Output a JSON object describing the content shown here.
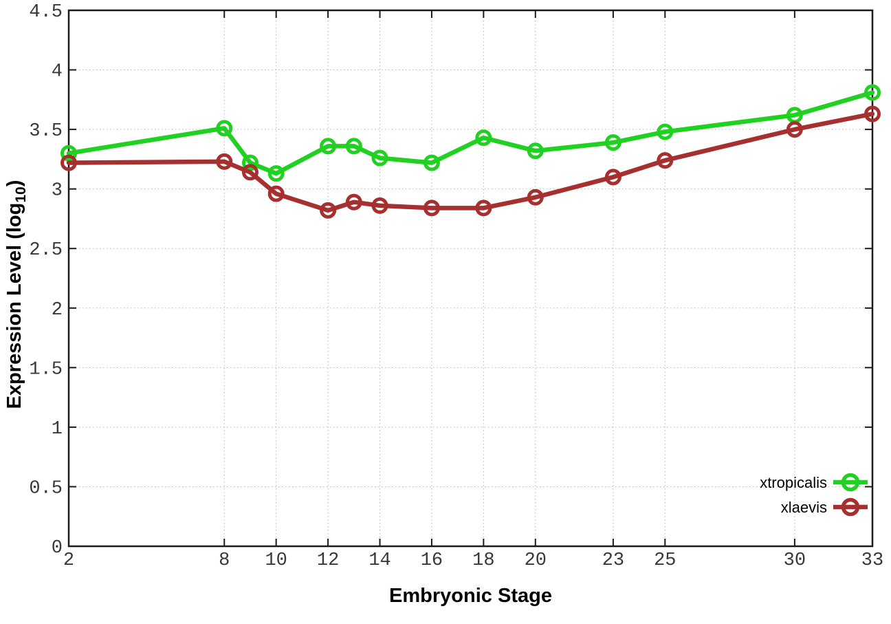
{
  "figure": {
    "background": "#ffffff",
    "xlabel": "Embryonic Stage",
    "ylabel_parts": [
      {
        "text": "Expression Level (log",
        "sub": false
      },
      {
        "text": "10",
        "sub": true
      },
      {
        "text": ")",
        "sub": false
      }
    ]
  },
  "chart_data": {
    "type": "line",
    "title": "",
    "xlabel": "Embryonic Stage",
    "ylabel": "Expression Level (log10)",
    "x": [
      2,
      8,
      9,
      10,
      12,
      13,
      14,
      16,
      18,
      20,
      23,
      25,
      30,
      33
    ],
    "series": [
      {
        "name": "xtropicalis",
        "color": "#21d121",
        "marker": "open-circle",
        "values": [
          3.3,
          3.51,
          3.22,
          3.13,
          3.36,
          3.36,
          3.26,
          3.22,
          3.43,
          3.32,
          3.39,
          3.48,
          3.62,
          3.81
        ]
      },
      {
        "name": "xlaevis",
        "color": "#a63030",
        "marker": "open-circle",
        "values": [
          3.22,
          3.23,
          3.14,
          2.96,
          2.82,
          2.89,
          2.86,
          2.84,
          2.84,
          2.93,
          3.1,
          3.24,
          3.5,
          3.63
        ]
      }
    ],
    "xlim": [
      2,
      33
    ],
    "ylim": [
      0,
      4.5
    ],
    "xticks": {
      "values": [
        2,
        8,
        10,
        12,
        14,
        16,
        18,
        20,
        23,
        25,
        30,
        33
      ],
      "labels": [
        "2",
        "8",
        "10",
        "12",
        "14",
        "16",
        "18",
        "20",
        "23",
        "25",
        "30",
        "33"
      ]
    },
    "yticks": {
      "values": [
        0,
        0.5,
        1,
        1.5,
        2,
        2.5,
        3,
        3.5,
        4,
        4.5
      ],
      "labels": [
        "0",
        "0.5",
        "1",
        "1.5",
        "2",
        "2.5",
        "3",
        "3.5",
        "4",
        "4.5"
      ]
    },
    "grid": true,
    "grid_style": "dotted",
    "legend_position": "bottom-right-inside",
    "legend_entries": [
      "xtropicalis",
      "xlaevis"
    ]
  },
  "colors": {
    "grid": "#b5b5b5",
    "border": "#1a1a1a",
    "tick_label": "#383838",
    "axis_title": "#000000",
    "legend_text": "#000000"
  }
}
